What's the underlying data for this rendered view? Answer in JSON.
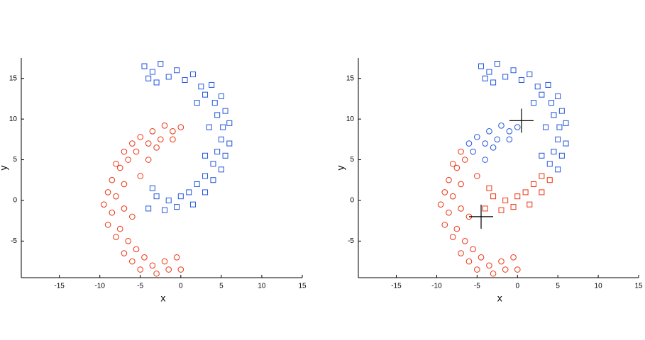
{
  "chart_data": [
    {
      "type": "scatter",
      "xlabel": "x",
      "ylabel": "y",
      "xlim": [
        -19.7,
        15
      ],
      "ylim": [
        -9.5,
        17.5
      ],
      "xticks": [
        -15,
        -10,
        -5,
        0,
        5,
        10,
        15
      ],
      "yticks": [
        -5,
        0,
        5,
        10,
        15
      ],
      "series": [
        {
          "color": "#2255dd",
          "marker": "square",
          "x": [
            -4.5,
            -3.5,
            -2.5,
            -1.5,
            -0.5,
            0.5,
            1.5,
            2.5,
            3,
            3.8,
            4.2,
            5,
            4.5,
            5.5,
            5.2,
            6,
            5,
            6,
            4.5,
            5.5,
            4,
            5,
            3,
            4,
            2,
            3,
            1,
            1.5,
            0,
            -0.5,
            -1.5,
            -2,
            -3,
            -3.5,
            -4,
            -3,
            -4,
            2,
            3.5,
            3
          ],
          "y": [
            16.5,
            15.8,
            16.8,
            15.2,
            16,
            14.8,
            15.5,
            14,
            13,
            14.2,
            12,
            12.8,
            10.5,
            11,
            9,
            9.5,
            7.5,
            7,
            6,
            5.5,
            4.5,
            3.8,
            3,
            2.5,
            2,
            1,
            1,
            -0.5,
            0.5,
            -0.8,
            0,
            -1.2,
            0.5,
            1.5,
            -1,
            14.5,
            15,
            12,
            9,
            5.5
          ]
        },
        {
          "color": "#ee3311",
          "marker": "circle",
          "x": [
            0,
            -1,
            -2,
            -2.5,
            -3.5,
            -4,
            -5,
            -5.5,
            -6,
            -6.5,
            -7,
            -7.5,
            -8,
            -8.5,
            -7,
            -9,
            -8,
            -9.5,
            -8.5,
            -9,
            -7.5,
            -8,
            -6.5,
            -7,
            -5.5,
            -6,
            -4.5,
            -5,
            -3.5,
            -3,
            -2,
            -1.5,
            -0.5,
            0,
            -4,
            -5,
            -3,
            -1,
            -6,
            -7
          ],
          "y": [
            9,
            8.5,
            9.2,
            7.5,
            8.5,
            7,
            7.8,
            6,
            7,
            5,
            6,
            4,
            4.5,
            2.5,
            2,
            1,
            0.5,
            -0.5,
            -1.5,
            -3,
            -3.5,
            -4.5,
            -5,
            -6.5,
            -6,
            -7.5,
            -7,
            -8.5,
            -8,
            -9,
            -7.5,
            -8.5,
            -7,
            -8.5,
            5,
            3,
            6.5,
            7.5,
            -2,
            -1
          ]
        }
      ]
    },
    {
      "type": "scatter",
      "xlabel": "x",
      "ylabel": "y",
      "xlim": [
        -19.7,
        15
      ],
      "ylim": [
        -9.5,
        17.5
      ],
      "xticks": [
        -15,
        -10,
        -5,
        0,
        5,
        10,
        15
      ],
      "yticks": [
        -5,
        0,
        5,
        10,
        15
      ],
      "series": [
        {
          "color": "#2255dd",
          "marker": "square",
          "x": [
            -4.5,
            -3.5,
            -2.5,
            -1.5,
            -0.5,
            0.5,
            1.5,
            2.5,
            3,
            3.8,
            4.2,
            5,
            4.5,
            5.5,
            5.2,
            6,
            5,
            6,
            4.5,
            5.5,
            4,
            5,
            -3,
            -4,
            2,
            3.5,
            3
          ],
          "y": [
            16.5,
            15.8,
            16.8,
            15.2,
            16,
            14.8,
            15.5,
            14,
            13,
            14.2,
            12,
            12.8,
            10.5,
            11,
            9,
            9.5,
            7.5,
            7,
            6,
            5.5,
            4.5,
            3.8,
            14.5,
            15,
            12,
            9,
            5.5
          ]
        },
        {
          "color": "#ee3311",
          "marker": "square",
          "x": [
            3,
            4,
            2,
            3,
            1,
            1.5,
            0,
            -0.5,
            -1.5,
            -2,
            -3,
            -3.5,
            -4
          ],
          "y": [
            3,
            2.5,
            2,
            1,
            1,
            -0.5,
            0.5,
            -0.8,
            0,
            -1.2,
            0.5,
            1.5,
            -1
          ]
        },
        {
          "color": "#2255dd",
          "marker": "circle",
          "x": [
            0,
            -1,
            -2,
            -2.5,
            -3.5,
            -4,
            -5,
            -5.5,
            -6,
            -4,
            -3,
            -1
          ],
          "y": [
            9,
            8.5,
            9.2,
            7.5,
            8.5,
            7,
            7.8,
            6,
            7,
            5,
            6.5,
            7.5
          ]
        },
        {
          "color": "#ee3311",
          "marker": "circle",
          "x": [
            -6.5,
            -7,
            -7.5,
            -8,
            -8.5,
            -7,
            -9,
            -8,
            -9.5,
            -8.5,
            -9,
            -7.5,
            -8,
            -6.5,
            -7,
            -5.5,
            -6,
            -4.5,
            -5,
            -3.5,
            -3,
            -2,
            -1.5,
            -0.5,
            0,
            -5,
            -6,
            -7
          ],
          "y": [
            5,
            6,
            4,
            4.5,
            2.5,
            2,
            1,
            0.5,
            -0.5,
            -1.5,
            -3,
            -3.5,
            -4.5,
            -5,
            -6.5,
            -6,
            -7.5,
            -7,
            -8.5,
            -8,
            -9,
            -7.5,
            -8.5,
            -7,
            -8.5,
            3,
            -2,
            -1
          ]
        },
        {
          "color": "#000000",
          "marker": "plus",
          "x": [
            0.5,
            -4.5
          ],
          "y": [
            9.8,
            -2
          ]
        }
      ]
    }
  ]
}
